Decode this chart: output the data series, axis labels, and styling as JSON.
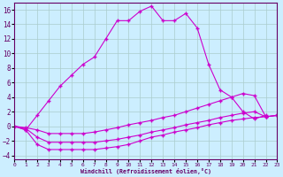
{
  "background_color": "#cceeff",
  "line_color": "#cc00cc",
  "grid_color": "#aacccc",
  "xlabel": "Windchill (Refroidissement éolien,°C)",
  "series_main": {
    "x": [
      0,
      1,
      2,
      3,
      4,
      5,
      6,
      7,
      8,
      9,
      10,
      11,
      12,
      13,
      14,
      15,
      16,
      17,
      18,
      19,
      20,
      21,
      22,
      23
    ],
    "y": [
      0.0,
      -0.5,
      1.5,
      3.5,
      5.5,
      7.0,
      8.5,
      9.5,
      12.0,
      14.5,
      14.5,
      15.8,
      16.5,
      14.5,
      14.5,
      15.5,
      13.5,
      8.5,
      5.0,
      4.0,
      2.0,
      1.0,
      1.5,
      null
    ]
  },
  "series_low1": {
    "x": [
      0,
      1,
      2,
      3,
      4,
      5,
      6,
      7,
      8,
      9,
      10,
      11,
      12,
      13,
      14,
      15,
      16,
      17,
      18,
      19,
      20,
      21,
      22,
      23
    ],
    "y": [
      0.0,
      -0.5,
      -2.5,
      -3.2,
      -3.2,
      -3.2,
      -3.2,
      -3.2,
      -3.0,
      -2.8,
      -2.5,
      -2.0,
      -1.5,
      -1.2,
      -0.8,
      -0.5,
      -0.2,
      0.2,
      0.5,
      0.8,
      1.0,
      1.2,
      1.3,
      1.5
    ]
  },
  "series_low2": {
    "x": [
      0,
      1,
      2,
      3,
      4,
      5,
      6,
      7,
      8,
      9,
      10,
      11,
      12,
      13,
      14,
      15,
      16,
      17,
      18,
      19,
      20,
      21,
      22,
      23
    ],
    "y": [
      0.0,
      -0.3,
      -1.5,
      -2.2,
      -2.2,
      -2.2,
      -2.2,
      -2.2,
      -2.0,
      -1.8,
      -1.5,
      -1.2,
      -0.8,
      -0.5,
      -0.2,
      0.2,
      0.5,
      0.8,
      1.2,
      1.5,
      1.8,
      2.0,
      1.3,
      1.5
    ]
  },
  "series_low3": {
    "x": [
      0,
      1,
      2,
      3,
      4,
      5,
      6,
      7,
      8,
      9,
      10,
      11,
      12,
      13,
      14,
      15,
      16,
      17,
      18,
      19,
      20,
      21,
      22,
      23
    ],
    "y": [
      0.0,
      -0.2,
      -0.5,
      -1.0,
      -1.0,
      -1.0,
      -1.0,
      -0.8,
      -0.5,
      -0.2,
      0.2,
      0.5,
      0.8,
      1.2,
      1.5,
      2.0,
      2.5,
      3.0,
      3.5,
      4.0,
      4.5,
      4.2,
      1.3,
      1.5
    ]
  },
  "xlim": [
    0,
    23
  ],
  "ylim": [
    -4.5,
    17
  ],
  "yticks": [
    -4,
    -2,
    0,
    2,
    4,
    6,
    8,
    10,
    12,
    14,
    16
  ],
  "xticks": [
    0,
    1,
    2,
    3,
    4,
    5,
    6,
    7,
    8,
    9,
    10,
    11,
    12,
    13,
    14,
    15,
    16,
    17,
    18,
    19,
    20,
    21,
    22,
    23
  ]
}
